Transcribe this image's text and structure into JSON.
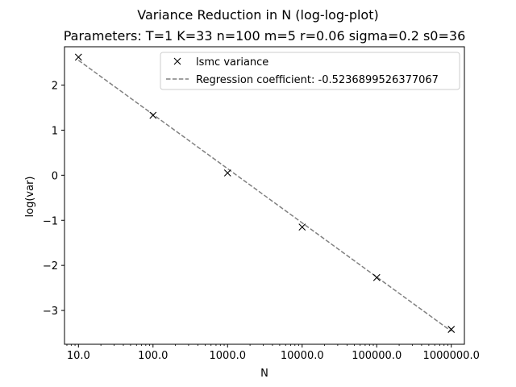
{
  "chart_data": {
    "type": "line",
    "title": "Variance Reduction in N (log-log-plot)",
    "subtitle": "Parameters: T=1 K=33 n=100 m=5 r=0.06 sigma=0.2 s0=36",
    "xlabel": "N",
    "ylabel": "log(var)",
    "x_scale": "log10",
    "x_tick_labels": [
      "10.0",
      "100.0",
      "1000.0",
      "10000.0",
      "100000.0",
      "1000000.0"
    ],
    "y_ticks": [
      -3,
      -2,
      -1,
      0,
      1,
      2
    ],
    "y_tick_labels": [
      "−3",
      "−2",
      "−1",
      "0",
      "1",
      "2"
    ],
    "xlim": [
      6.5,
      1500000
    ],
    "ylim": [
      -3.75,
      2.85
    ],
    "grid": false,
    "legend_position": "top-right",
    "series": [
      {
        "name": "lsmc variance",
        "style": "markers",
        "marker": "x",
        "color": "#000000",
        "x": [
          10,
          100,
          1000,
          10000,
          100000,
          1000000
        ],
        "y": [
          2.62,
          1.33,
          0.05,
          -1.15,
          -2.27,
          -3.42
        ]
      },
      {
        "name": "Regression coefficient: -0.5236899526377067",
        "style": "dashed-line",
        "color": "#808080",
        "x": [
          10,
          1000000
        ],
        "y": [
          2.55,
          -3.46
        ]
      }
    ]
  }
}
